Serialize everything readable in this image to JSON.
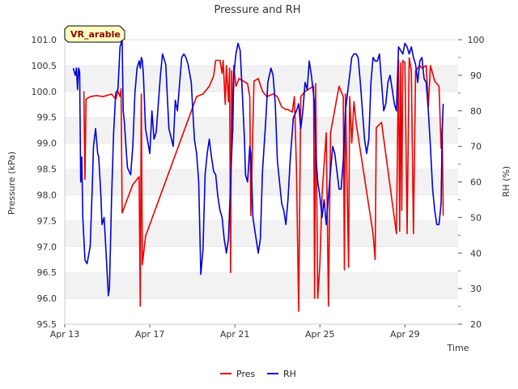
{
  "chart_data": {
    "type": "line",
    "title": "Pressure and RH",
    "site_label": "VR_arable",
    "xlabel": "Time",
    "ylabel_left": "Pressure (kPa)",
    "ylabel_right": "RH (%)",
    "ylim_left": [
      95.5,
      101.0
    ],
    "ylim_right": [
      20,
      100
    ],
    "xlim_days": [
      0,
      18.5
    ],
    "x_unit": "days since Apr 13",
    "x_ticks": [
      {
        "day": 0,
        "label": "Apr 13"
      },
      {
        "day": 4,
        "label": "Apr 17"
      },
      {
        "day": 8,
        "label": "Apr 21"
      },
      {
        "day": 12,
        "label": "Apr 25"
      },
      {
        "day": 16,
        "label": "Apr 29"
      }
    ],
    "y_ticks_left": [
      "95.5",
      "96.0",
      "96.5",
      "97.0",
      "97.5",
      "98.0",
      "98.5",
      "99.0",
      "99.5",
      "100.0",
      "100.5",
      "101.0"
    ],
    "y_ticks_right": [
      "20",
      "30",
      "40",
      "50",
      "60",
      "70",
      "80",
      "90",
      "100"
    ],
    "grid": "horizontal bands",
    "legend_position": "bottom-center",
    "series": [
      {
        "name": "Pres",
        "axis": "left",
        "color": "#ee0000",
        "points": [
          [
            0.9,
            100.0
          ],
          [
            0.95,
            98.3
          ],
          [
            1.0,
            99.85
          ],
          [
            1.2,
            99.9
          ],
          [
            1.5,
            99.92
          ],
          [
            1.8,
            99.9
          ],
          [
            2.2,
            99.95
          ],
          [
            2.4,
            99.85
          ],
          [
            2.5,
            100.0
          ],
          [
            2.6,
            99.9
          ],
          [
            2.65,
            100.05
          ],
          [
            2.7,
            97.65
          ],
          [
            3.2,
            98.2
          ],
          [
            3.5,
            98.35
          ],
          [
            3.55,
            95.85
          ],
          [
            3.6,
            99.95
          ],
          [
            3.65,
            96.65
          ],
          [
            3.8,
            97.2
          ],
          [
            6.2,
            99.9
          ],
          [
            6.5,
            99.95
          ],
          [
            6.8,
            100.1
          ],
          [
            7.0,
            100.3
          ],
          [
            7.1,
            100.6
          ],
          [
            7.3,
            100.6
          ],
          [
            7.4,
            100.35
          ],
          [
            7.45,
            100.6
          ],
          [
            7.55,
            99.75
          ],
          [
            7.6,
            100.5
          ],
          [
            7.7,
            99.8
          ],
          [
            7.75,
            100.45
          ],
          [
            7.8,
            96.5
          ],
          [
            7.85,
            100.4
          ],
          [
            7.9,
            99.2
          ],
          [
            7.95,
            100.5
          ],
          [
            8.05,
            100.1
          ],
          [
            8.2,
            100.25
          ],
          [
            8.4,
            100.2
          ],
          [
            8.6,
            100.15
          ],
          [
            8.7,
            99.9
          ],
          [
            8.75,
            97.6
          ],
          [
            8.9,
            100.2
          ],
          [
            9.1,
            100.25
          ],
          [
            9.3,
            100.0
          ],
          [
            9.5,
            99.9
          ],
          [
            9.8,
            99.95
          ],
          [
            10.0,
            99.9
          ],
          [
            10.2,
            99.7
          ],
          [
            10.4,
            99.65
          ],
          [
            10.5,
            99.65
          ],
          [
            10.7,
            99.6
          ],
          [
            10.8,
            99.9
          ],
          [
            10.9,
            98.5
          ],
          [
            11.0,
            95.75
          ],
          [
            11.1,
            99.9
          ],
          [
            11.3,
            100.0
          ],
          [
            11.5,
            100.05
          ],
          [
            11.7,
            100.1
          ],
          [
            11.75,
            96.0
          ],
          [
            11.8,
            100.15
          ],
          [
            11.9,
            96.0
          ],
          [
            12.0,
            96.65
          ],
          [
            12.1,
            98.0
          ],
          [
            12.3,
            99.2
          ],
          [
            12.4,
            95.85
          ],
          [
            12.5,
            99.2
          ],
          [
            12.9,
            100.1
          ],
          [
            13.1,
            99.9
          ],
          [
            13.15,
            96.55
          ],
          [
            13.2,
            99.95
          ],
          [
            13.35,
            96.6
          ],
          [
            13.4,
            99.9
          ],
          [
            13.5,
            99.0
          ],
          [
            13.6,
            99.8
          ],
          [
            13.7,
            99.4
          ],
          [
            14.5,
            97.25
          ],
          [
            14.6,
            96.75
          ],
          [
            14.65,
            99.3
          ],
          [
            14.9,
            99.4
          ],
          [
            15.6,
            97.25
          ],
          [
            15.7,
            100.6
          ],
          [
            15.75,
            97.3
          ],
          [
            15.8,
            100.55
          ],
          [
            15.85,
            97.7
          ],
          [
            15.9,
            100.6
          ],
          [
            16.0,
            100.55
          ],
          [
            16.1,
            97.25
          ],
          [
            16.2,
            100.65
          ],
          [
            16.3,
            100.4
          ],
          [
            16.4,
            97.25
          ],
          [
            16.5,
            100.4
          ],
          [
            16.7,
            100.5
          ],
          [
            16.8,
            100.45
          ],
          [
            17.0,
            100.5
          ],
          [
            17.1,
            99.7
          ],
          [
            17.2,
            100.5
          ],
          [
            17.4,
            100.2
          ],
          [
            17.6,
            100.1
          ],
          [
            17.7,
            98.9
          ],
          [
            17.75,
            99.3
          ],
          [
            17.8,
            97.6
          ]
        ]
      },
      {
        "name": "RH",
        "axis": "right",
        "color": "#0000dd",
        "points": [
          [
            0.4,
            92
          ],
          [
            0.5,
            90
          ],
          [
            0.55,
            92
          ],
          [
            0.6,
            86
          ],
          [
            0.65,
            92
          ],
          [
            0.7,
            91
          ],
          [
            0.75,
            60
          ],
          [
            0.8,
            67
          ],
          [
            0.85,
            50
          ],
          [
            0.95,
            38
          ],
          [
            1.05,
            37
          ],
          [
            1.2,
            42
          ],
          [
            1.3,
            60
          ],
          [
            1.35,
            70
          ],
          [
            1.45,
            75
          ],
          [
            1.55,
            68
          ],
          [
            1.6,
            67
          ],
          [
            1.7,
            56
          ],
          [
            1.75,
            48
          ],
          [
            1.85,
            50
          ],
          [
            1.9,
            45
          ],
          [
            2.05,
            28
          ],
          [
            2.1,
            30
          ],
          [
            2.2,
            55
          ],
          [
            2.3,
            74
          ],
          [
            2.4,
            85
          ],
          [
            2.5,
            86
          ],
          [
            2.6,
            98
          ],
          [
            2.7,
            100
          ],
          [
            2.75,
            80
          ],
          [
            2.8,
            77
          ],
          [
            2.9,
            68
          ],
          [
            2.95,
            64
          ],
          [
            3.1,
            62
          ],
          [
            3.2,
            70
          ],
          [
            3.3,
            85
          ],
          [
            3.4,
            92
          ],
          [
            3.5,
            94
          ],
          [
            3.55,
            92
          ],
          [
            3.6,
            95
          ],
          [
            3.65,
            94
          ],
          [
            3.7,
            90
          ],
          [
            3.8,
            75
          ],
          [
            4.0,
            68
          ],
          [
            4.1,
            80
          ],
          [
            4.2,
            72
          ],
          [
            4.3,
            74
          ],
          [
            4.5,
            90
          ],
          [
            4.6,
            96
          ],
          [
            4.75,
            93
          ],
          [
            4.9,
            75
          ],
          [
            5.1,
            70
          ],
          [
            5.2,
            83
          ],
          [
            5.3,
            80
          ],
          [
            5.5,
            95
          ],
          [
            5.6,
            96
          ],
          [
            5.7,
            95
          ],
          [
            5.8,
            93
          ],
          [
            5.95,
            88
          ],
          [
            6.1,
            72
          ],
          [
            6.2,
            68
          ],
          [
            6.3,
            60
          ],
          [
            6.4,
            34
          ],
          [
            6.5,
            41
          ],
          [
            6.6,
            62
          ],
          [
            6.7,
            68
          ],
          [
            6.8,
            72
          ],
          [
            6.9,
            67
          ],
          [
            7.0,
            63
          ],
          [
            7.1,
            62
          ],
          [
            7.2,
            56
          ],
          [
            7.3,
            52
          ],
          [
            7.4,
            50
          ],
          [
            7.5,
            44
          ],
          [
            7.6,
            40
          ],
          [
            7.7,
            44
          ],
          [
            7.8,
            60
          ],
          [
            7.9,
            75
          ],
          [
            7.95,
            90
          ],
          [
            8.05,
            96
          ],
          [
            8.15,
            99
          ],
          [
            8.25,
            97
          ],
          [
            8.35,
            85
          ],
          [
            8.45,
            72
          ],
          [
            8.5,
            62
          ],
          [
            8.6,
            60
          ],
          [
            8.7,
            70
          ],
          [
            8.75,
            68
          ],
          [
            8.85,
            50
          ],
          [
            8.9,
            48
          ],
          [
            9.0,
            44
          ],
          [
            9.1,
            40
          ],
          [
            9.2,
            44
          ],
          [
            9.3,
            63
          ],
          [
            9.45,
            77
          ],
          [
            9.55,
            88
          ],
          [
            9.7,
            92
          ],
          [
            9.8,
            90
          ],
          [
            9.9,
            82
          ],
          [
            10.0,
            66
          ],
          [
            10.2,
            54
          ],
          [
            10.3,
            52
          ],
          [
            10.4,
            48
          ],
          [
            10.5,
            55
          ],
          [
            10.6,
            66
          ],
          [
            10.75,
            78
          ],
          [
            10.9,
            80
          ],
          [
            11.0,
            82
          ],
          [
            11.1,
            75
          ],
          [
            11.2,
            80
          ],
          [
            11.3,
            88
          ],
          [
            11.4,
            86
          ],
          [
            11.5,
            94
          ],
          [
            11.6,
            90
          ],
          [
            11.75,
            82
          ],
          [
            11.8,
            68
          ],
          [
            11.9,
            60
          ],
          [
            12.0,
            56
          ],
          [
            12.1,
            50
          ],
          [
            12.2,
            55
          ],
          [
            12.3,
            48
          ],
          [
            12.4,
            56
          ],
          [
            12.5,
            63
          ],
          [
            12.6,
            70
          ],
          [
            12.7,
            68
          ],
          [
            12.8,
            63
          ],
          [
            12.9,
            58
          ],
          [
            13.0,
            58
          ],
          [
            13.1,
            66
          ],
          [
            13.2,
            80
          ],
          [
            13.4,
            90
          ],
          [
            13.5,
            95
          ],
          [
            13.6,
            96
          ],
          [
            13.7,
            96
          ],
          [
            13.8,
            95
          ],
          [
            13.9,
            88
          ],
          [
            14.0,
            80
          ],
          [
            14.1,
            72
          ],
          [
            14.2,
            68
          ],
          [
            14.3,
            72
          ],
          [
            14.4,
            88
          ],
          [
            14.5,
            95
          ],
          [
            14.6,
            94
          ],
          [
            14.7,
            94
          ],
          [
            14.8,
            96
          ],
          [
            14.9,
            88
          ],
          [
            15.0,
            80
          ],
          [
            15.1,
            82
          ],
          [
            15.2,
            88
          ],
          [
            15.3,
            90
          ],
          [
            15.4,
            86
          ],
          [
            15.5,
            82
          ],
          [
            15.6,
            80
          ],
          [
            15.7,
            98
          ],
          [
            15.8,
            97
          ],
          [
            15.9,
            96
          ],
          [
            16.0,
            99
          ],
          [
            16.1,
            98
          ],
          [
            16.2,
            96
          ],
          [
            16.3,
            98
          ],
          [
            16.4,
            95
          ],
          [
            16.5,
            93
          ],
          [
            16.6,
            88
          ],
          [
            16.7,
            94
          ],
          [
            16.8,
            95
          ],
          [
            16.9,
            89
          ],
          [
            17.0,
            88
          ],
          [
            17.1,
            80
          ],
          [
            17.2,
            70
          ],
          [
            17.3,
            58
          ],
          [
            17.4,
            52
          ],
          [
            17.5,
            48
          ],
          [
            17.6,
            48
          ],
          [
            17.7,
            54
          ],
          [
            17.75,
            74
          ],
          [
            17.8,
            82
          ]
        ]
      }
    ]
  }
}
